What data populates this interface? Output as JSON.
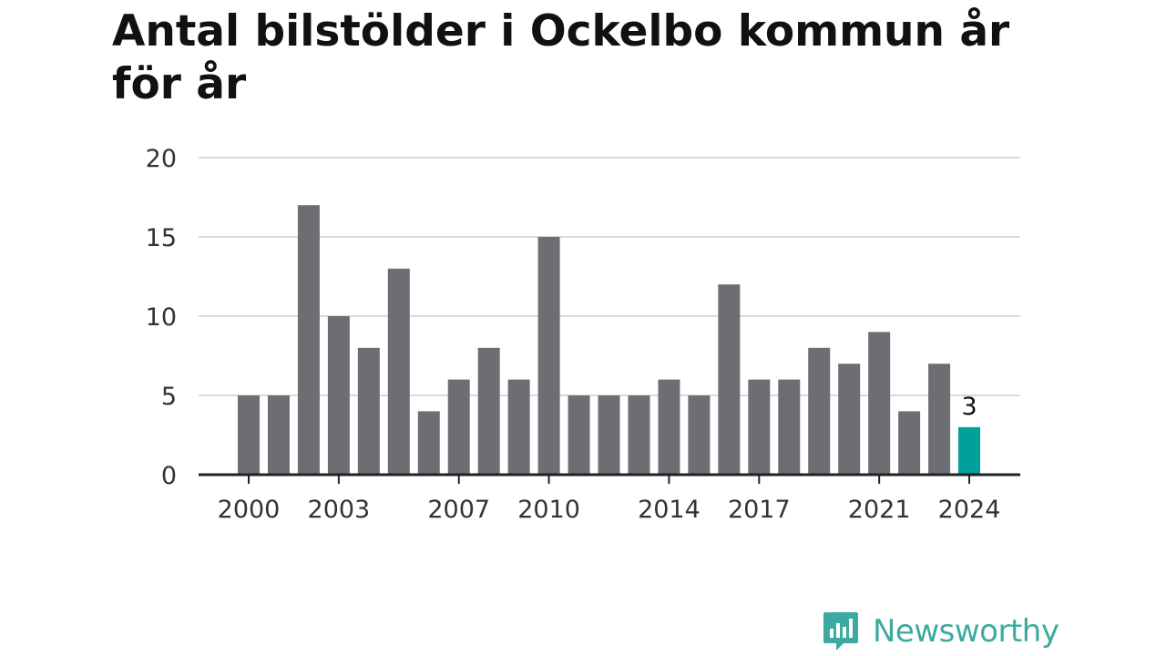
{
  "title": "Antal bilstölder i Ockelbo kommun år för år",
  "brand": {
    "name": "Newsworthy",
    "color": "#3daaa0"
  },
  "colors": {
    "bar": "#6e6d73",
    "highlight": "#00a19a",
    "grid": "#d9d9d9",
    "axis": "#222222",
    "text": "#333333"
  },
  "chart_data": {
    "type": "bar",
    "title": "Antal bilstölder i Ockelbo kommun år för år",
    "xlabel": "",
    "ylabel": "",
    "categories": [
      2000,
      2001,
      2002,
      2003,
      2004,
      2005,
      2006,
      2007,
      2008,
      2009,
      2010,
      2011,
      2012,
      2013,
      2014,
      2015,
      2016,
      2017,
      2018,
      2019,
      2020,
      2021,
      2022,
      2023,
      2024
    ],
    "values": [
      5,
      5,
      17,
      10,
      8,
      13,
      4,
      6,
      8,
      6,
      15,
      5,
      5,
      5,
      6,
      5,
      12,
      6,
      6,
      8,
      7,
      9,
      4,
      7,
      3
    ],
    "ylim": [
      0,
      20
    ],
    "yticks": [
      0,
      5,
      10,
      15,
      20
    ],
    "xticks": [
      2000,
      2003,
      2007,
      2010,
      2014,
      2017,
      2021,
      2024
    ],
    "highlight": {
      "category": 2024,
      "label": "3"
    },
    "grid": true,
    "legend": "none"
  }
}
